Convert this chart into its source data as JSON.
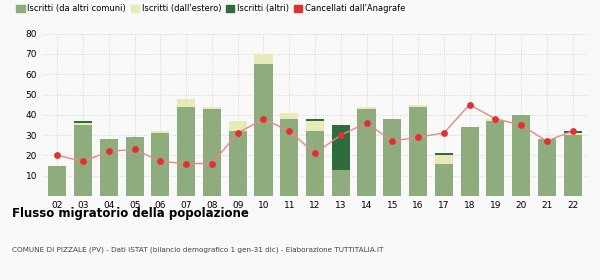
{
  "years": [
    "02",
    "03",
    "04",
    "05",
    "06",
    "07",
    "08",
    "09",
    "10",
    "11",
    "12",
    "13",
    "14",
    "15",
    "16",
    "17",
    "18",
    "19",
    "20",
    "21",
    "22"
  ],
  "iscritti_comuni": [
    15,
    35,
    28,
    29,
    31,
    44,
    43,
    32,
    65,
    38,
    32,
    13,
    43,
    38,
    44,
    16,
    34,
    37,
    40,
    28,
    30
  ],
  "iscritti_estero": [
    0,
    1,
    0,
    0,
    1,
    4,
    1,
    5,
    5,
    3,
    5,
    0,
    1,
    0,
    1,
    4,
    0,
    1,
    0,
    0,
    1
  ],
  "iscritti_altri": [
    0,
    1,
    0,
    0,
    0,
    0,
    0,
    0,
    0,
    0,
    1,
    22,
    0,
    0,
    0,
    1,
    0,
    0,
    0,
    0,
    1
  ],
  "cancellati": [
    20,
    17,
    22,
    23,
    17,
    16,
    16,
    31,
    38,
    32,
    21,
    30,
    36,
    27,
    29,
    31,
    45,
    38,
    35,
    27,
    32
  ],
  "color_comuni": "#8fac7e",
  "color_estero": "#e8ebb8",
  "color_altri": "#2e6b3e",
  "color_cancellati_dot": "#e03030",
  "color_cancellati_line": "#e88888",
  "title": "Flusso migratorio della popolazione",
  "subtitle": "COMUNE DI PIZZALE (PV) - Dati ISTAT (bilancio demografico 1 gen-31 dic) - Elaborazione TUTTITALIA.IT",
  "legend_labels": [
    "Iscritti (da altri comuni)",
    "Iscritti (dall'estero)",
    "Iscritti (altri)",
    "Cancellati dall'Anagrafe"
  ],
  "ylim": [
    0,
    80
  ],
  "yticks": [
    0,
    10,
    20,
    30,
    40,
    50,
    60,
    70,
    80
  ],
  "background": "#f9f9f9"
}
